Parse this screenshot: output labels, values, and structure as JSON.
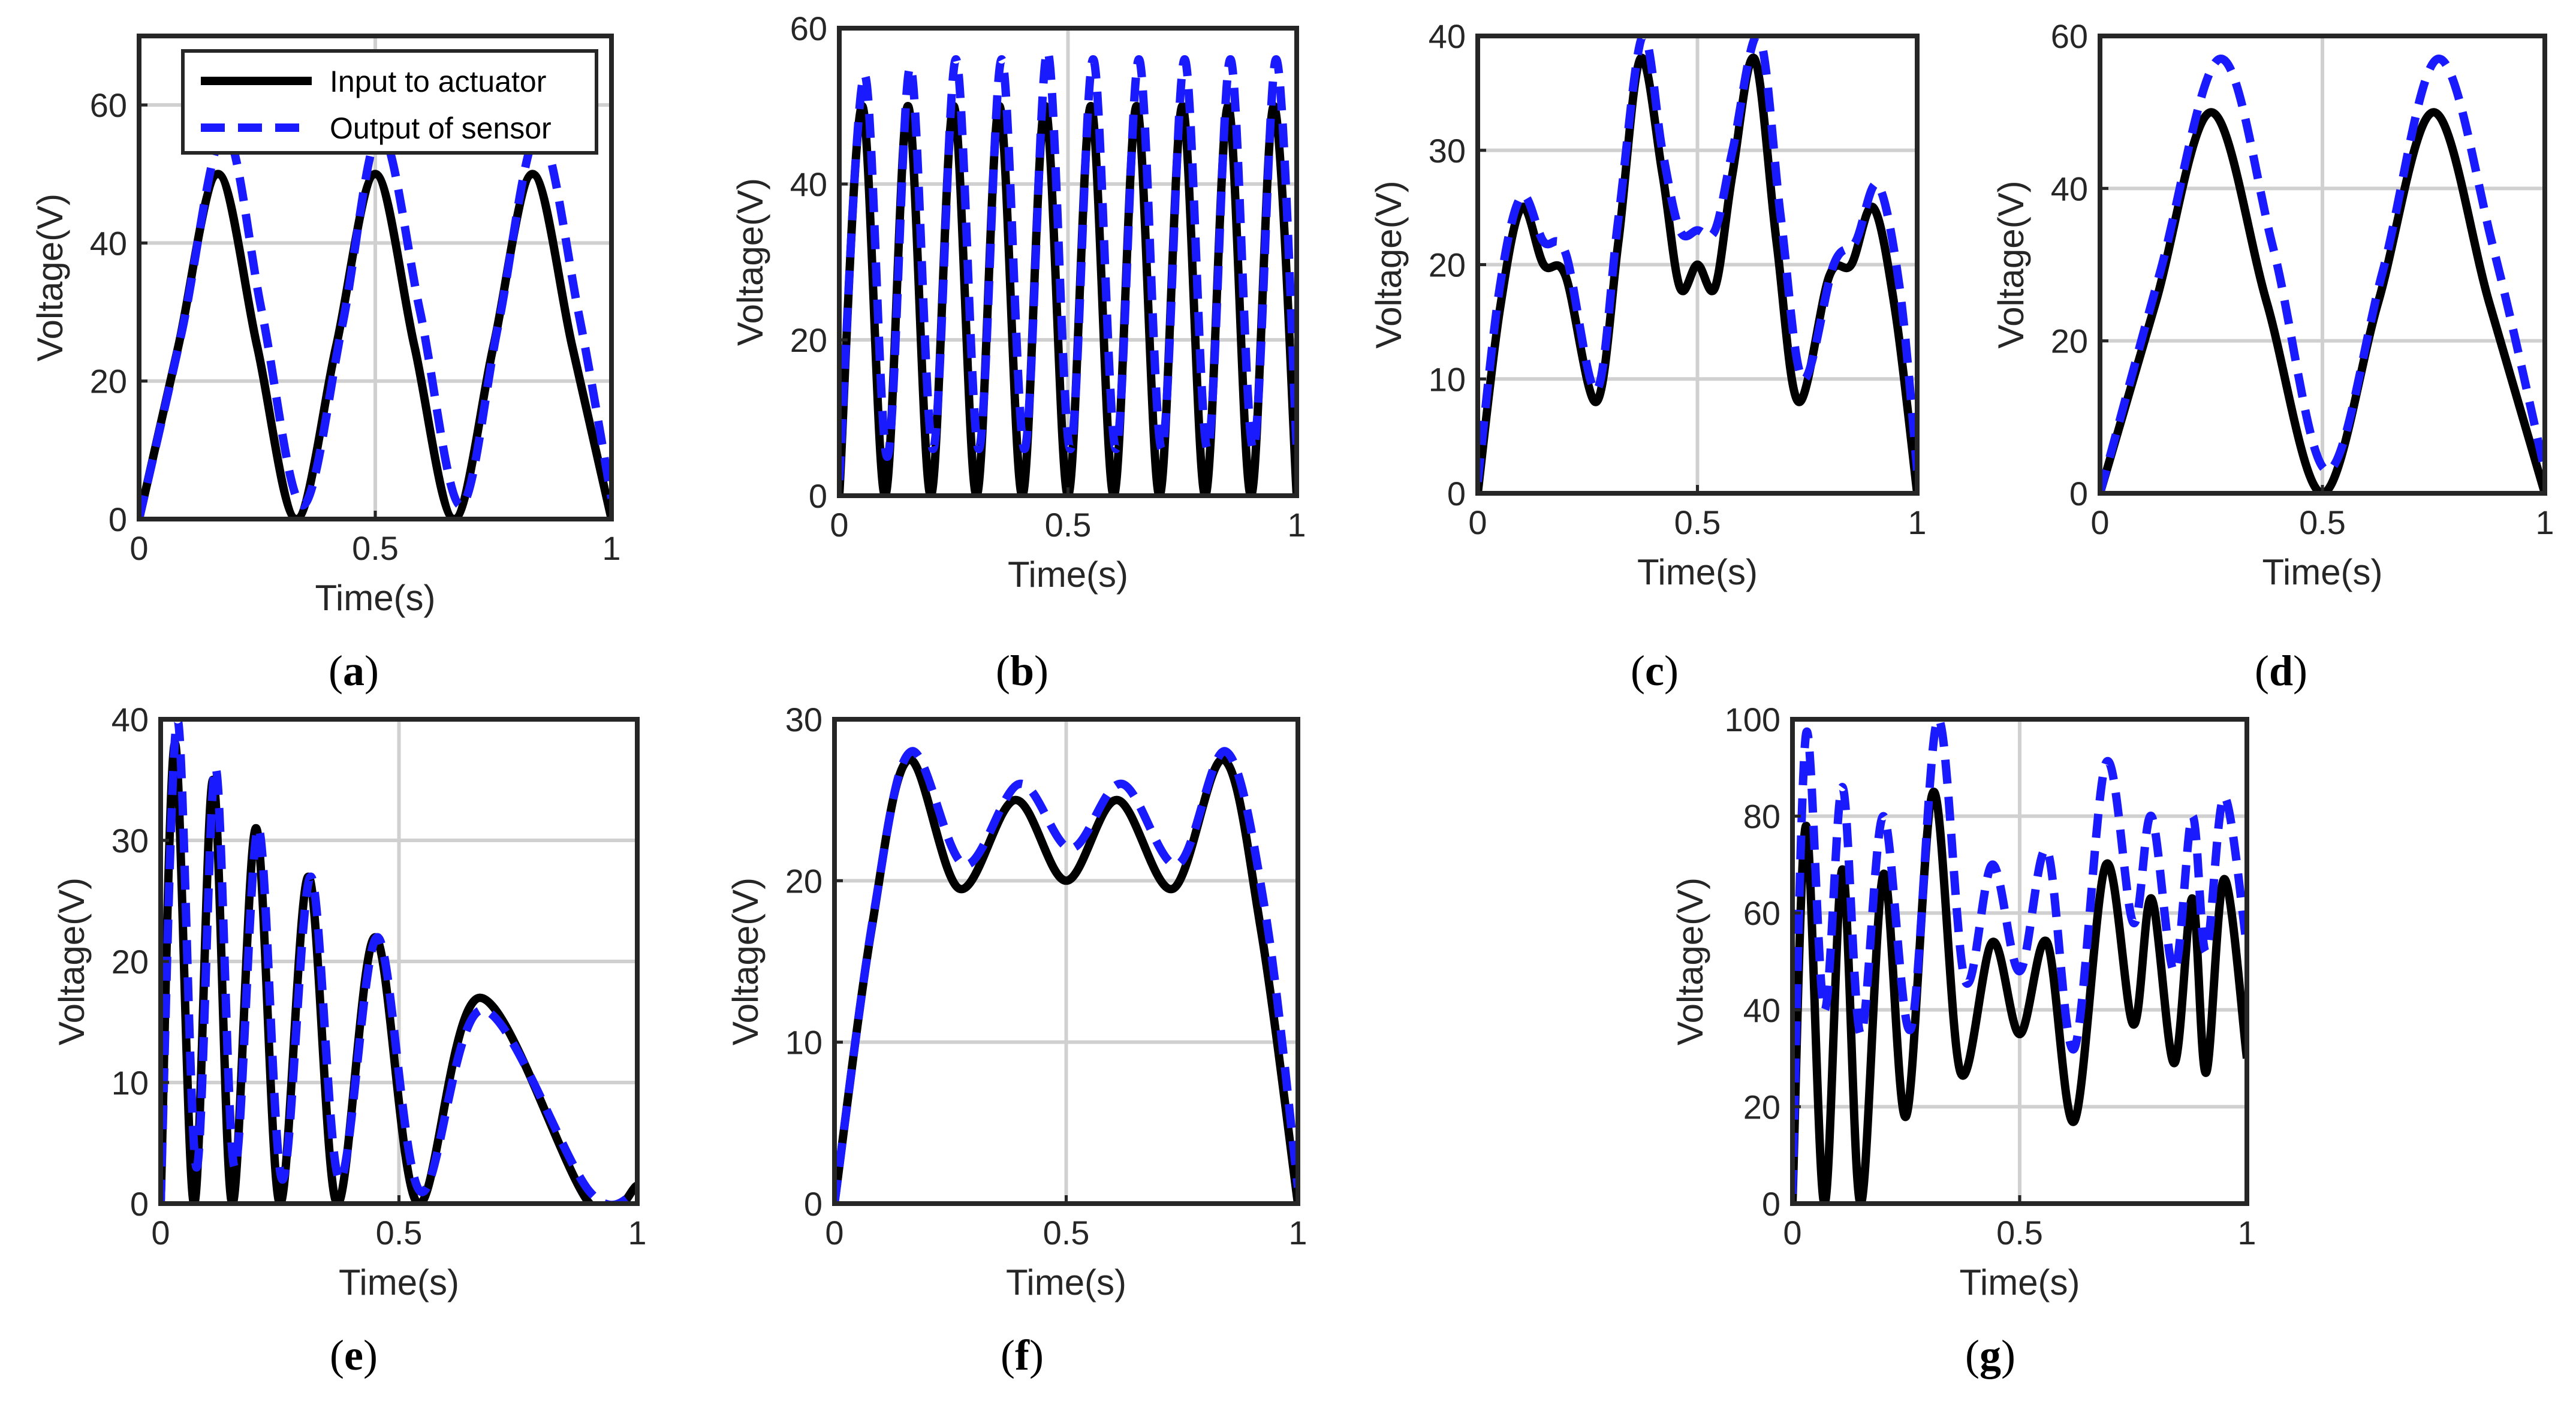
{
  "figure": {
    "legend": {
      "entries": [
        {
          "label": "Input to actuator",
          "color": "#000000",
          "style": "solid"
        },
        {
          "label": "Output of sensor",
          "color": "#1a1aff",
          "style": "dashed"
        }
      ]
    }
  },
  "chart_data": [
    {
      "panel": "a",
      "type": "line",
      "xlabel": "Time(s)",
      "ylabel": "Voltage(V)",
      "xlim": [
        0,
        1
      ],
      "ylim": [
        0,
        70
      ],
      "xticks": [
        0,
        0.5,
        1
      ],
      "xtick_labels": [
        "0",
        "0.5",
        "1"
      ],
      "yticks": [
        0,
        20,
        40,
        60
      ],
      "ytick_labels": [
        "0",
        "20",
        "40",
        "60"
      ],
      "grid": true,
      "legend_position": "top-right",
      "series": [
        {
          "name": "Input to actuator",
          "x": [
            0,
            0.083,
            0.167,
            0.25,
            0.333,
            0.417,
            0.5,
            0.583,
            0.667,
            0.75,
            0.833,
            0.917,
            1.0
          ],
          "y": [
            0,
            25,
            50,
            25,
            0,
            25,
            50,
            25,
            0,
            25,
            50,
            25,
            0
          ]
        },
        {
          "name": "Output of sensor",
          "x": [
            0,
            0.09,
            0.18,
            0.26,
            0.345,
            0.43,
            0.51,
            0.595,
            0.68,
            0.76,
            0.845,
            0.93,
            1.0
          ],
          "y": [
            0,
            27,
            56,
            30,
            2,
            28,
            56,
            30,
            2,
            28,
            56,
            30,
            3
          ]
        }
      ]
    },
    {
      "panel": "b",
      "type": "line",
      "xlabel": "Time(s)",
      "ylabel": "Voltage(V)",
      "xlim": [
        0,
        1
      ],
      "ylim": [
        0,
        60
      ],
      "xticks": [
        0,
        0.5,
        1
      ],
      "xtick_labels": [
        "0",
        "0.5",
        "1"
      ],
      "yticks": [
        0,
        20,
        40,
        60
      ],
      "ytick_labels": [
        "0",
        "20",
        "40",
        "60"
      ],
      "grid": true,
      "series": [
        {
          "name": "Input to actuator",
          "x": [
            0,
            0.05,
            0.1,
            0.15,
            0.2,
            0.25,
            0.3,
            0.35,
            0.4,
            0.45,
            0.5,
            0.55,
            0.6,
            0.65,
            0.7,
            0.75,
            0.8,
            0.85,
            0.9,
            0.95,
            1.0
          ],
          "y": [
            0,
            50,
            0,
            50,
            0,
            50,
            0,
            50,
            0,
            50,
            0,
            50,
            0,
            50,
            0,
            50,
            0,
            50,
            0,
            50,
            0
          ]
        },
        {
          "name": "Output of sensor",
          "x": [
            0,
            0.055,
            0.105,
            0.155,
            0.205,
            0.255,
            0.305,
            0.355,
            0.405,
            0.455,
            0.505,
            0.555,
            0.605,
            0.655,
            0.705,
            0.755,
            0.805,
            0.855,
            0.905,
            0.955,
            1.0
          ],
          "y": [
            2,
            54,
            5,
            55,
            6,
            56,
            6,
            56,
            6,
            57,
            6,
            56,
            6,
            56,
            6,
            56,
            6,
            56,
            6,
            56,
            6
          ]
        }
      ]
    },
    {
      "panel": "c",
      "type": "line",
      "xlabel": "Time(s)",
      "ylabel": "Voltage(V)",
      "xlim": [
        0,
        1
      ],
      "ylim": [
        0,
        40
      ],
      "xticks": [
        0,
        0.5,
        1
      ],
      "xtick_labels": [
        "0",
        "0.5",
        "1"
      ],
      "yticks": [
        0,
        10,
        20,
        30,
        40
      ],
      "ytick_labels": [
        "0",
        "10",
        "20",
        "30",
        "40"
      ],
      "grid": true,
      "series": [
        {
          "name": "Input to actuator",
          "x": [
            0,
            0.05,
            0.1,
            0.15,
            0.2,
            0.27,
            0.32,
            0.37,
            0.42,
            0.46,
            0.5,
            0.54,
            0.58,
            0.63,
            0.68,
            0.73,
            0.8,
            0.85,
            0.9,
            0.95,
            1.0
          ],
          "y": [
            0,
            16,
            25,
            20,
            19,
            8,
            22,
            38,
            28,
            18,
            20,
            18,
            28,
            38,
            22,
            8,
            19,
            20,
            25,
            16,
            0
          ]
        },
        {
          "name": "Output of sensor",
          "x": [
            0,
            0.05,
            0.1,
            0.15,
            0.2,
            0.27,
            0.32,
            0.375,
            0.42,
            0.46,
            0.5,
            0.54,
            0.58,
            0.64,
            0.69,
            0.74,
            0.81,
            0.86,
            0.91,
            0.96,
            1.0
          ],
          "y": [
            1,
            18,
            26,
            22,
            21,
            9,
            24,
            40,
            30,
            23,
            23,
            23,
            30,
            40,
            24,
            10,
            20,
            22,
            27,
            18,
            2
          ]
        }
      ]
    },
    {
      "panel": "d",
      "type": "line",
      "xlabel": "Time(s)",
      "ylabel": "Voltage(V)",
      "xlim": [
        0,
        1
      ],
      "ylim": [
        0,
        60
      ],
      "xticks": [
        0,
        0.5,
        1
      ],
      "xtick_labels": [
        "0",
        "0.5",
        "1"
      ],
      "yticks": [
        0,
        20,
        40,
        60
      ],
      "ytick_labels": [
        "0",
        "20",
        "40",
        "60"
      ],
      "grid": true,
      "series": [
        {
          "name": "Input to actuator",
          "x": [
            0,
            0.125,
            0.25,
            0.375,
            0.5,
            0.625,
            0.75,
            0.875,
            1.0
          ],
          "y": [
            0,
            25,
            50,
            25,
            0,
            25,
            50,
            25,
            0
          ]
        },
        {
          "name": "Output of sensor",
          "x": [
            0,
            0.135,
            0.27,
            0.39,
            0.51,
            0.635,
            0.76,
            0.885,
            1.0
          ],
          "y": [
            0,
            29,
            57,
            32,
            3,
            29,
            57,
            32,
            3
          ]
        }
      ]
    },
    {
      "panel": "e",
      "type": "line",
      "xlabel": "Time(s)",
      "ylabel": "Voltage(V)",
      "xlim": [
        0,
        1
      ],
      "ylim": [
        0,
        40
      ],
      "xticks": [
        0,
        0.5,
        1
      ],
      "xtick_labels": [
        "0",
        "0.5",
        "1"
      ],
      "yticks": [
        0,
        10,
        20,
        30,
        40
      ],
      "ytick_labels": [
        "0",
        "10",
        "20",
        "30",
        "40"
      ],
      "grid": true,
      "series": [
        {
          "name": "Input to actuator",
          "x": [
            0,
            0.03,
            0.07,
            0.11,
            0.15,
            0.2,
            0.25,
            0.31,
            0.37,
            0.45,
            0.54,
            0.67,
            0.9,
            1.0
          ],
          "y": [
            0,
            38,
            0,
            35,
            0,
            31,
            0,
            27,
            0,
            22,
            0,
            17,
            0,
            1.5
          ]
        },
        {
          "name": "Output of sensor",
          "x": [
            0,
            0.035,
            0.075,
            0.115,
            0.155,
            0.205,
            0.255,
            0.315,
            0.375,
            0.455,
            0.545,
            0.675,
            0.9,
            1.0
          ],
          "y": [
            0,
            40,
            3,
            36,
            3,
            31,
            2,
            27,
            2,
            22,
            1,
            16,
            1,
            1
          ]
        }
      ]
    },
    {
      "panel": "f",
      "type": "line",
      "xlabel": "Time(s)",
      "ylabel": "Voltage(V)",
      "xlim": [
        0,
        1
      ],
      "ylim": [
        0,
        30
      ],
      "xticks": [
        0,
        0.5,
        1
      ],
      "xtick_labels": [
        "0",
        "0.5",
        "1"
      ],
      "yticks": [
        0,
        10,
        20,
        30
      ],
      "ytick_labels": [
        "0",
        "10",
        "20",
        "30"
      ],
      "grid": true,
      "series": [
        {
          "name": "Input to actuator",
          "x": [
            0,
            0.08,
            0.16,
            0.27,
            0.39,
            0.5,
            0.61,
            0.73,
            0.84,
            0.92,
            1.0
          ],
          "y": [
            0,
            17,
            27.5,
            19.5,
            25,
            20,
            25,
            19.5,
            27.5,
            17,
            0
          ]
        },
        {
          "name": "Output of sensor",
          "x": [
            0,
            0.085,
            0.165,
            0.28,
            0.4,
            0.51,
            0.62,
            0.74,
            0.845,
            0.93,
            1.0
          ],
          "y": [
            0,
            18,
            28,
            21,
            26,
            22,
            26,
            21,
            28,
            18,
            1
          ]
        }
      ]
    },
    {
      "panel": "g",
      "type": "line",
      "xlabel": "Time(s)",
      "ylabel": "Voltage(V)",
      "xlim": [
        0,
        1
      ],
      "ylim": [
        0,
        100
      ],
      "xticks": [
        0,
        0.5,
        1
      ],
      "xtick_labels": [
        "0",
        "0.5",
        "1"
      ],
      "yticks": [
        0,
        20,
        40,
        60,
        80,
        100
      ],
      "ytick_labels": [
        "0",
        "20",
        "40",
        "60",
        "80",
        "100"
      ],
      "grid": true,
      "series": [
        {
          "name": "Input to actuator",
          "x": [
            0,
            0.03,
            0.07,
            0.11,
            0.15,
            0.2,
            0.25,
            0.31,
            0.37,
            0.44,
            0.5,
            0.56,
            0.62,
            0.69,
            0.75,
            0.79,
            0.84,
            0.88,
            0.91,
            0.95,
            1.0
          ],
          "y": [
            0,
            78,
            0,
            69,
            0,
            68,
            18,
            85,
            27,
            54,
            35,
            54,
            17,
            70,
            37,
            63,
            29,
            63,
            27,
            67,
            30
          ]
        },
        {
          "name": "Output of sensor",
          "x": [
            0,
            0.03,
            0.07,
            0.11,
            0.15,
            0.2,
            0.26,
            0.32,
            0.38,
            0.44,
            0.5,
            0.56,
            0.62,
            0.69,
            0.75,
            0.79,
            0.84,
            0.88,
            0.91,
            0.95,
            1.0
          ],
          "y": [
            2,
            97,
            40,
            86,
            35,
            80,
            36,
            100,
            46,
            70,
            48,
            73,
            32,
            91,
            58,
            80,
            48,
            80,
            52,
            84,
            53
          ]
        }
      ]
    }
  ],
  "panel_labels": [
    {
      "open": "(",
      "letter": "a",
      "close": ")"
    },
    {
      "open": "(",
      "letter": "b",
      "close": ")"
    },
    {
      "open": "(",
      "letter": "c",
      "close": ")"
    },
    {
      "open": "(",
      "letter": "d",
      "close": ")"
    },
    {
      "open": "(",
      "letter": "e",
      "close": ")"
    },
    {
      "open": "(",
      "letter": "f",
      "close": ")"
    },
    {
      "open": "(",
      "letter": "g",
      "close": ")"
    }
  ]
}
